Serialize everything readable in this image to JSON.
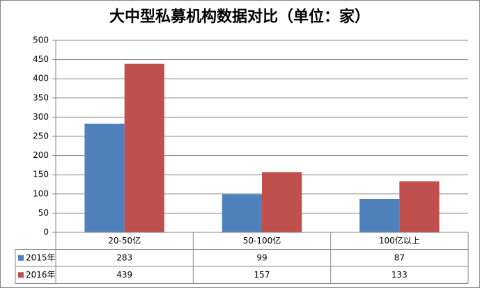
{
  "chart_data": {
    "type": "bar",
    "title": "大中型私募机构数据对比（单位：家）",
    "categories": [
      "20-50亿",
      "50-100亿",
      "100亿以上"
    ],
    "series": [
      {
        "name": "2015年",
        "color": "#4f81bd",
        "values": [
          283,
          99,
          87
        ]
      },
      {
        "name": "2016年",
        "color": "#c0504d",
        "values": [
          439,
          157,
          133
        ]
      }
    ],
    "ylim": [
      0,
      500
    ],
    "yticks": [
      0,
      50,
      100,
      150,
      200,
      250,
      300,
      350,
      400,
      450,
      500
    ],
    "grid": true
  }
}
